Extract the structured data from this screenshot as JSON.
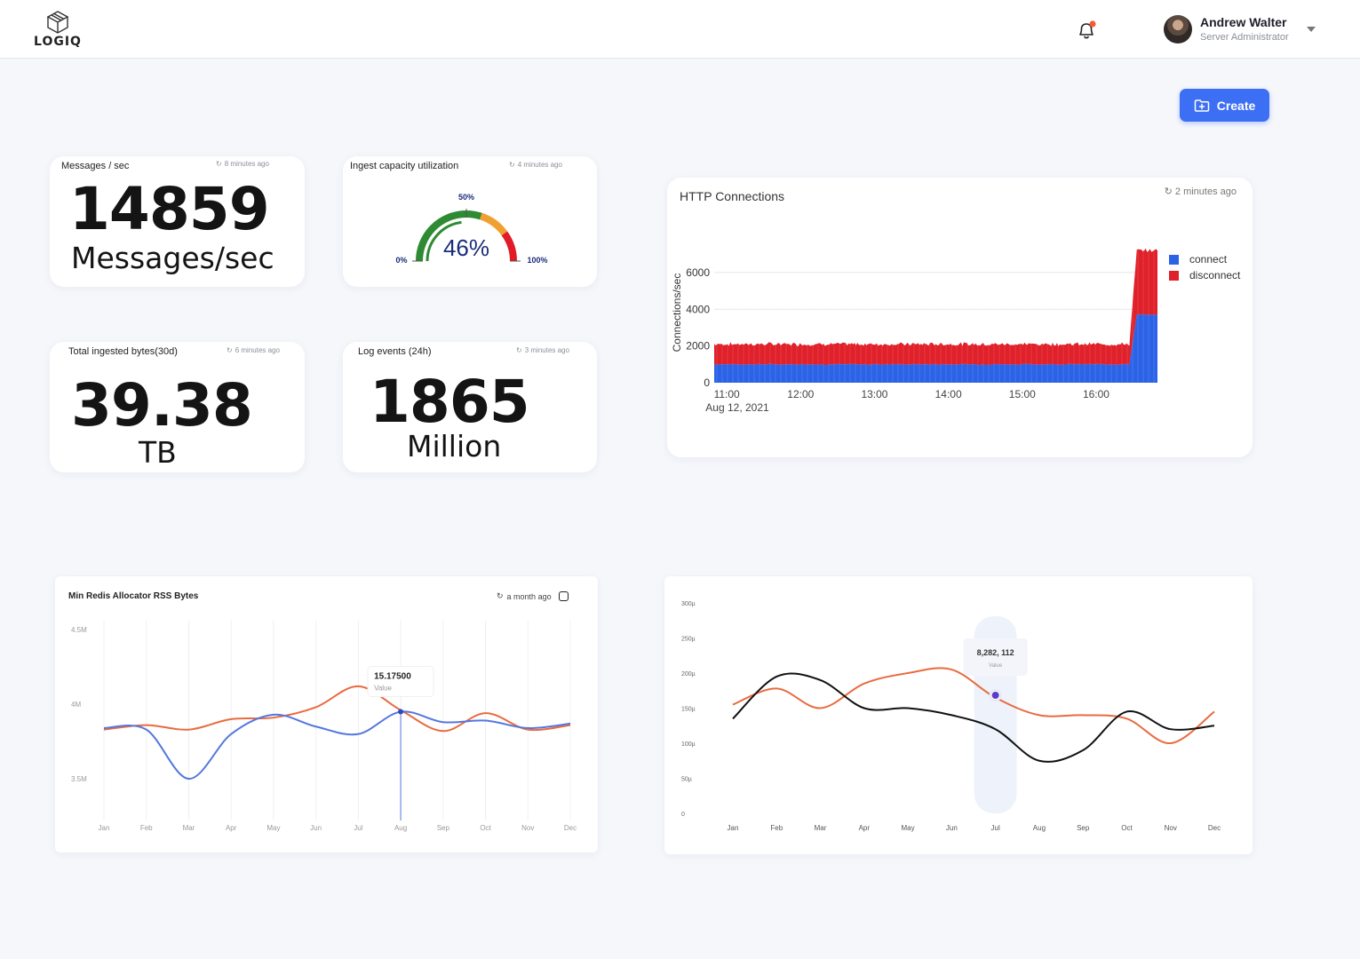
{
  "header": {
    "logo_text": "LOGIQ",
    "user": {
      "name": "Andrew Walter",
      "role": "Server Administrator"
    },
    "notification_dot_color": "#f25a38"
  },
  "toolbar": {
    "create_label": "Create",
    "accent": "#3d6ff5"
  },
  "stats": {
    "messages": {
      "title": "Messages / sec",
      "updated": "8 minutes ago",
      "value": "14859",
      "unit": "Messages/sec"
    },
    "ingest": {
      "title": "Ingest capacity utilization",
      "updated": "4 minutes ago",
      "percent_label": "46%",
      "min_label": "0%",
      "mid_label": "50%",
      "max_label": "100%",
      "value": 46
    },
    "bytes": {
      "title": "Total ingested bytes(30d)",
      "updated": "6 minutes ago",
      "value": "39.38",
      "unit": "TB"
    },
    "log_events": {
      "title": "Log events (24h)",
      "updated": "3 minutes ago",
      "value": "1865",
      "unit": "Million"
    }
  },
  "http": {
    "title": "HTTP Connections",
    "updated": "2 minutes ago",
    "chart_data": {
      "type": "area",
      "stacked": true,
      "ylabel": "Connections/sec",
      "y_ticks": [
        "0",
        "2000",
        "4000",
        "6000"
      ],
      "ylim": [
        0,
        7300
      ],
      "x_ticks": [
        "11:00",
        "12:00",
        "13:00",
        "14:00",
        "15:00",
        "16:00"
      ],
      "x_date": "Aug 12, 2021",
      "xlim_hours": [
        10.83,
        16.83
      ],
      "step_hour": 16.45,
      "series": [
        {
          "name": "connect",
          "color": "#2c63e6",
          "before": 1000,
          "after": 3700
        },
        {
          "name": "disconnect",
          "color": "#e0202a",
          "before": 1100,
          "after": 3500
        }
      ]
    }
  },
  "redis": {
    "title": "Min Redis Allocator RSS Bytes",
    "updated": "a month ago",
    "chart_data": {
      "type": "line",
      "categories": [
        "Jan",
        "Feb",
        "Mar",
        "Apr",
        "May",
        "Jun",
        "Jul",
        "Aug",
        "Sep",
        "Oct",
        "Nov",
        "Dec"
      ],
      "y_ticks": [
        "3.5M",
        "4M",
        "4.5M"
      ],
      "ylim": [
        3.22,
        4.62
      ],
      "tooltip": {
        "value": "15.17500",
        "label": "Value",
        "index": 7
      },
      "series": [
        {
          "color": "#e96b3f",
          "values": [
            3.83,
            3.86,
            3.83,
            3.9,
            3.91,
            3.98,
            4.12,
            3.96,
            3.82,
            3.94,
            3.83,
            3.86
          ]
        },
        {
          "color": "#5577dd",
          "values": [
            3.84,
            3.83,
            3.5,
            3.8,
            3.93,
            3.85,
            3.8,
            3.95,
            3.88,
            3.89,
            3.84,
            3.87
          ]
        }
      ]
    }
  },
  "trend": {
    "chart_data": {
      "type": "line",
      "categories": [
        "Jan",
        "Feb",
        "Mar",
        "Apr",
        "May",
        "Jun",
        "Jul",
        "Aug",
        "Sep",
        "Oct",
        "Nov",
        "Dec"
      ],
      "y_ticks": [
        "0",
        "50µ",
        "100µ",
        "150µ",
        "200µ",
        "250µ",
        "300µ"
      ],
      "ylim": [
        0,
        300
      ],
      "tooltip": {
        "value": "8,282, 112",
        "label": "Value",
        "index": 6
      },
      "series": [
        {
          "color": "#e96b3f",
          "values": [
            155,
            178,
            150,
            185,
            200,
            205,
            165,
            140,
            140,
            135,
            100,
            145
          ]
        },
        {
          "color": "#111111",
          "values": [
            135,
            195,
            190,
            150,
            150,
            140,
            120,
            75,
            90,
            145,
            120,
            125
          ]
        }
      ]
    }
  }
}
